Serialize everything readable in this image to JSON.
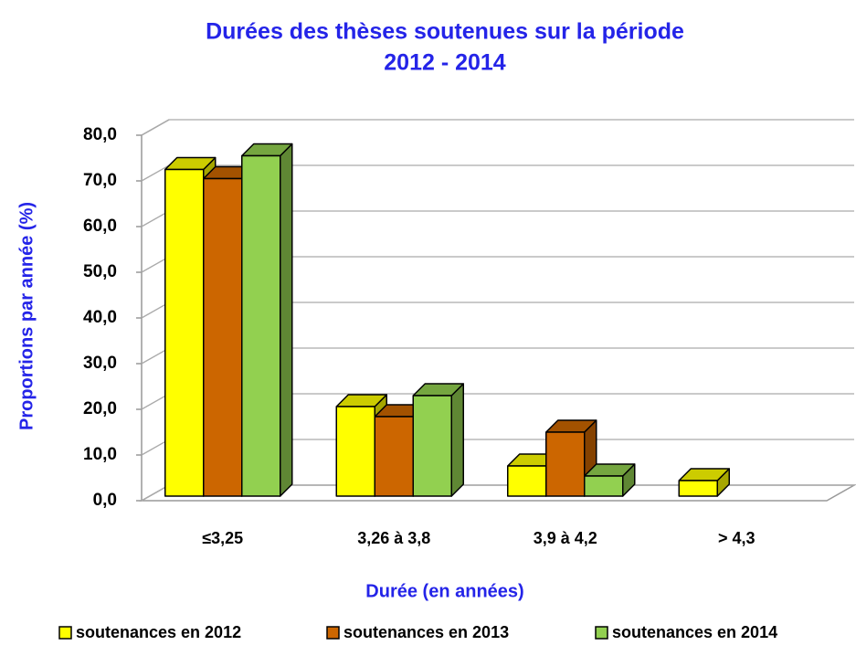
{
  "chart_data": {
    "type": "bar3d",
    "title": [
      "Durées des thèses soutenues sur la période",
      "2012 - 2014"
    ],
    "x_label": "Durée (en années)",
    "y_label": "Proportions par année (%)",
    "categories": [
      "≤3,25",
      "3,26 à 3,8",
      "3,9 à 4,2",
      "> 4,3"
    ],
    "series": [
      {
        "name": "soutenances en 2012",
        "color": "#ffff00",
        "values": [
          71.5,
          19.6,
          6.6,
          3.4
        ]
      },
      {
        "name": "soutenances en 2013",
        "color": "#cc6600",
        "values": [
          69.5,
          17.4,
          14,
          0
        ]
      },
      {
        "name": "soutenances en 2014",
        "color": "#92d050",
        "values": [
          74.5,
          22,
          4.4,
          0
        ]
      }
    ],
    "ylim": [
      0,
      80
    ],
    "yticks": [
      {
        "value": 0,
        "label": "0,0"
      },
      {
        "value": 10,
        "label": "10,0"
      },
      {
        "value": 20,
        "label": "20,0"
      },
      {
        "value": 30,
        "label": "30,0"
      },
      {
        "value": 40,
        "label": "40,0"
      },
      {
        "value": 50,
        "label": "50,0"
      },
      {
        "value": 60,
        "label": "60,0"
      },
      {
        "value": 70,
        "label": "70,0"
      },
      {
        "value": 80,
        "label": "80,0"
      }
    ],
    "grid": true,
    "legend": "bottom"
  }
}
